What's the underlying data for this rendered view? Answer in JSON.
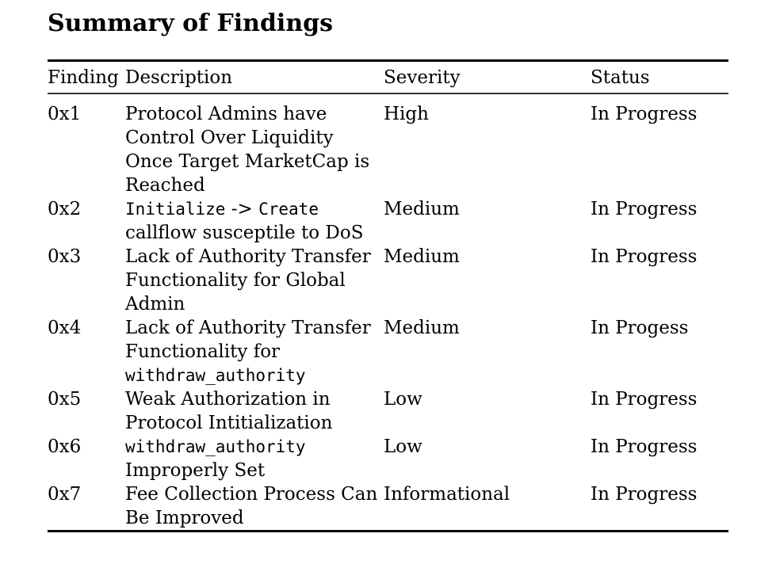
{
  "document": {
    "title": "Summary of Findings"
  },
  "table": {
    "headers": {
      "finding": "Finding",
      "description": "Description",
      "severity": "Severity",
      "status": "Status"
    },
    "rows": [
      {
        "finding": "0x1",
        "description": [
          [
            {
              "t": "Protocol Admins have",
              "m": false
            }
          ],
          [
            {
              "t": "Control Over Liquidity",
              "m": false
            }
          ],
          [
            {
              "t": "Once Target MarketCap is",
              "m": false
            }
          ],
          [
            {
              "t": "Reached",
              "m": false
            }
          ]
        ],
        "severity": "High",
        "status": "In Progress"
      },
      {
        "finding": "0x2",
        "description": [
          [
            {
              "t": "Initialize",
              "m": true
            },
            {
              "t": " -> ",
              "m": false
            },
            {
              "t": "Create",
              "m": true
            }
          ],
          [
            {
              "t": "callflow susceptile to DoS",
              "m": false
            }
          ]
        ],
        "severity": "Medium",
        "status": "In Progress"
      },
      {
        "finding": "0x3",
        "description": [
          [
            {
              "t": "Lack of Authority Transfer",
              "m": false
            }
          ],
          [
            {
              "t": "Functionality for Global",
              "m": false
            }
          ],
          [
            {
              "t": "Admin",
              "m": false
            }
          ]
        ],
        "severity": "Medium",
        "status": "In Progress"
      },
      {
        "finding": "0x4",
        "description": [
          [
            {
              "t": "Lack of Authority Transfer",
              "m": false
            }
          ],
          [
            {
              "t": "Functionality for",
              "m": false
            }
          ],
          [
            {
              "t": "withdraw_authority",
              "m": true
            }
          ]
        ],
        "severity": "Medium",
        "status": "In Progess"
      },
      {
        "finding": "0x5",
        "description": [
          [
            {
              "t": "Weak Authorization in",
              "m": false
            }
          ],
          [
            {
              "t": "Protocol Intitialization",
              "m": false
            }
          ]
        ],
        "severity": "Low",
        "status": "In Progress"
      },
      {
        "finding": "0x6",
        "description": [
          [
            {
              "t": "withdraw_authority",
              "m": true
            }
          ],
          [
            {
              "t": "Improperly Set",
              "m": false
            }
          ]
        ],
        "severity": "Low",
        "status": "In Progress"
      },
      {
        "finding": "0x7",
        "description": [
          [
            {
              "t": "Fee Collection Process Can",
              "m": false
            }
          ],
          [
            {
              "t": "Be Improved",
              "m": false
            }
          ]
        ],
        "severity": "Informational",
        "status": "In Progress"
      }
    ]
  },
  "colors": {
    "text": "#000000",
    "background": "#ffffff",
    "rule_heavy": "#000000",
    "rule_light": "#333333"
  }
}
